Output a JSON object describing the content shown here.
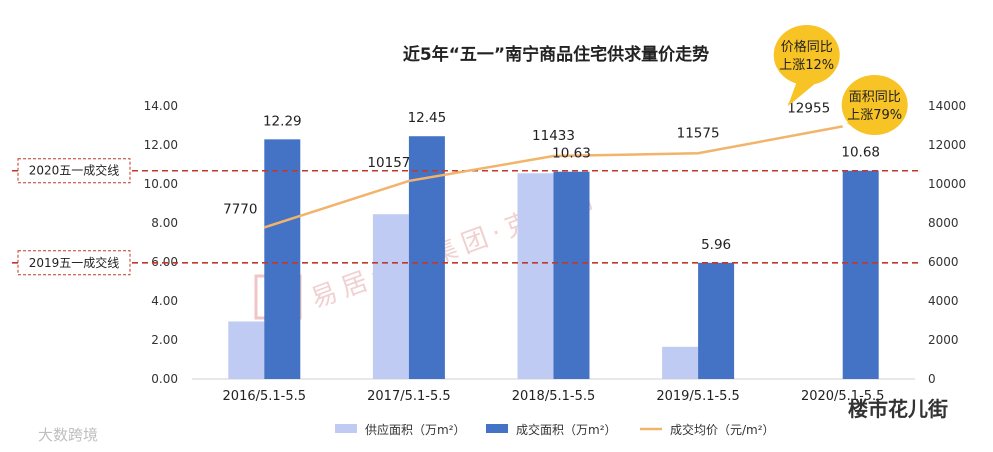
{
  "chart_data": {
    "type": "bar",
    "title": "近5年“五一”南宁商品住宅供求量价走势",
    "categories": [
      "2016/5.1-5.5",
      "2017/5.1-5.5",
      "2018/5.1-5.5",
      "2019/5.1-5.5",
      "2020/5.1-5.5"
    ],
    "series": [
      {
        "name": "供应面积（万m²）",
        "kind": "bar",
        "axis": "left",
        "color": "#bfcbf2",
        "values": [
          2.95,
          8.45,
          10.55,
          1.65,
          0.0
        ]
      },
      {
        "name": "成交面积（万m²）",
        "kind": "bar",
        "axis": "left",
        "color": "#4472c4",
        "values": [
          12.29,
          12.45,
          10.63,
          5.96,
          10.68
        ],
        "labels": [
          "12.29",
          "12.45",
          "10.63",
          "5.96",
          "10.68"
        ]
      },
      {
        "name": "成交均价（元/m²）",
        "kind": "line",
        "axis": "right",
        "color": "#f2b36b",
        "values": [
          7770,
          10157,
          11433,
          11575,
          12955
        ],
        "labels": [
          "7770",
          "10157",
          "11433",
          "11575",
          "12955"
        ]
      }
    ],
    "y_left": {
      "min": 0,
      "max": 14,
      "ticks": [
        "0.00",
        "2.00",
        "4.00",
        "6.00",
        "8.00",
        "10.00",
        "12.00",
        "14.00"
      ]
    },
    "y_right": {
      "min": 0,
      "max": 14000,
      "ticks": [
        "0",
        "2000",
        "4000",
        "6000",
        "8000",
        "10000",
        "12000",
        "14000"
      ]
    },
    "reference_lines": [
      {
        "label": "2020五一成交线",
        "value": 10.68,
        "color": "#c0392b"
      },
      {
        "label": "2019五一成交线",
        "value": 5.96,
        "color": "#c0392b"
      }
    ],
    "callouts": [
      {
        "lines": [
          "价格同比",
          "上涨12%"
        ],
        "color": "#f7c325"
      },
      {
        "lines": [
          "面积同比",
          "上涨79%"
        ],
        "color": "#f7c325"
      }
    ],
    "legend_position": "bottom",
    "grid": false
  },
  "watermarks": {
    "center": "易居企业集团·克而瑞",
    "bottom_left": "大数跨境",
    "bottom_right": "楼市花儿街"
  }
}
